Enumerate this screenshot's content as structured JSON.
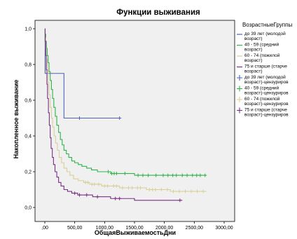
{
  "chart_data": {
    "type": "line",
    "title": "Функции выживания",
    "xlabel": "ОбщаяВыживаемостьДни",
    "ylabel": "Накопленное выживание",
    "xlim": [
      0,
      3000
    ],
    "ylim": [
      0,
      1.0
    ],
    "x_ticks": [
      ",00",
      "500,00",
      "1000,00",
      "1500,00",
      "2000,00",
      "2500,00",
      "3000,00"
    ],
    "y_ticks": [
      "0,0",
      "0,2",
      "0,4",
      "0,6",
      "0,8",
      "1,0"
    ],
    "plot_background": "#f0f0f0",
    "grid": false,
    "legend_position": "right",
    "legend": {
      "title": "ВозрастныеГруппы",
      "entries": [
        {
          "label": [
            "до 39 лет (молодой",
            "возраст)"
          ],
          "color": "#4a63b5",
          "kind": "line"
        },
        {
          "label": [
            "40 - 59 (средний",
            "возраст)"
          ],
          "color": "#2fb34a",
          "kind": "line"
        },
        {
          "label": [
            "60 - 74 (пожилой",
            "возраст)"
          ],
          "color": "#d8cf98",
          "kind": "line"
        },
        {
          "label": [
            "75 и старше (старче",
            "возраст)"
          ],
          "color": "#7a2f85",
          "kind": "line"
        },
        {
          "label": [
            "до 39 лет (молодой",
            "возраст)-цензуриров"
          ],
          "color": "#4a63b5",
          "kind": "censor"
        },
        {
          "label": [
            "40 - 59 (средний",
            "возраст)-цензуриров"
          ],
          "color": "#2fb34a",
          "kind": "censor"
        },
        {
          "label": [
            "60 - 74 (пожилой",
            "возраст)-цензуриров"
          ],
          "color": "#d8cf98",
          "kind": "censor"
        },
        {
          "label": [
            "75 и старше (старче",
            "возраст)-цензуриров"
          ],
          "color": "#7a2f85",
          "kind": "censor"
        }
      ]
    },
    "series": [
      {
        "name": "до 39 лет (молодой возраст)",
        "color": "#4a63b5",
        "steps": [
          [
            0,
            1.0
          ],
          [
            5,
            0.75
          ],
          [
            320,
            0.5
          ],
          [
            1250,
            0.5
          ]
        ],
        "censored": [
          [
            580,
            0.5
          ],
          [
            1250,
            0.5
          ]
        ]
      },
      {
        "name": "40 - 59 (средний возраст)",
        "color": "#2fb34a",
        "steps": [
          [
            0,
            1.0
          ],
          [
            5,
            0.97
          ],
          [
            15,
            0.93
          ],
          [
            25,
            0.89
          ],
          [
            40,
            0.85
          ],
          [
            55,
            0.81
          ],
          [
            70,
            0.76
          ],
          [
            90,
            0.71
          ],
          [
            110,
            0.66
          ],
          [
            130,
            0.61
          ],
          [
            150,
            0.56
          ],
          [
            175,
            0.51
          ],
          [
            200,
            0.46
          ],
          [
            230,
            0.42
          ],
          [
            260,
            0.38
          ],
          [
            290,
            0.35
          ],
          [
            320,
            0.32
          ],
          [
            360,
            0.3
          ],
          [
            400,
            0.28
          ],
          [
            450,
            0.26
          ],
          [
            500,
            0.25
          ],
          [
            560,
            0.24
          ],
          [
            620,
            0.23
          ],
          [
            700,
            0.22
          ],
          [
            780,
            0.21
          ],
          [
            880,
            0.2
          ],
          [
            1000,
            0.2
          ],
          [
            1100,
            0.19
          ],
          [
            1300,
            0.19
          ],
          [
            1500,
            0.18
          ],
          [
            2700,
            0.18
          ]
        ],
        "censored": [
          [
            1060,
            0.2
          ],
          [
            1120,
            0.19
          ],
          [
            1160,
            0.19
          ],
          [
            1200,
            0.19
          ],
          [
            1340,
            0.19
          ],
          [
            1560,
            0.18
          ],
          [
            1640,
            0.18
          ],
          [
            1730,
            0.18
          ],
          [
            1860,
            0.18
          ],
          [
            1980,
            0.18
          ],
          [
            2060,
            0.18
          ],
          [
            2140,
            0.18
          ],
          [
            2200,
            0.18
          ],
          [
            2300,
            0.18
          ],
          [
            2380,
            0.18
          ],
          [
            2470,
            0.18
          ],
          [
            2540,
            0.18
          ],
          [
            2600,
            0.18
          ],
          [
            2680,
            0.18
          ]
        ]
      },
      {
        "name": "60 - 74 (пожилой возраст)",
        "color": "#d8cf98",
        "steps": [
          [
            0,
            1.0
          ],
          [
            5,
            0.95
          ],
          [
            15,
            0.89
          ],
          [
            25,
            0.83
          ],
          [
            40,
            0.77
          ],
          [
            55,
            0.7
          ],
          [
            70,
            0.63
          ],
          [
            90,
            0.56
          ],
          [
            110,
            0.5
          ],
          [
            130,
            0.45
          ],
          [
            155,
            0.4
          ],
          [
            180,
            0.36
          ],
          [
            210,
            0.32
          ],
          [
            240,
            0.28
          ],
          [
            280,
            0.25
          ],
          [
            320,
            0.22
          ],
          [
            370,
            0.2
          ],
          [
            420,
            0.18
          ],
          [
            480,
            0.16
          ],
          [
            560,
            0.15
          ],
          [
            650,
            0.14
          ],
          [
            750,
            0.13
          ],
          [
            850,
            0.13
          ],
          [
            950,
            0.12
          ],
          [
            1100,
            0.12
          ],
          [
            1250,
            0.11
          ],
          [
            1500,
            0.11
          ],
          [
            1700,
            0.1
          ],
          [
            1900,
            0.1
          ],
          [
            2100,
            0.09
          ],
          [
            2700,
            0.09
          ]
        ],
        "censored": [
          [
            680,
            0.14
          ],
          [
            720,
            0.14
          ],
          [
            790,
            0.13
          ],
          [
            830,
            0.13
          ],
          [
            900,
            0.13
          ],
          [
            1000,
            0.12
          ],
          [
            1050,
            0.12
          ],
          [
            1150,
            0.12
          ],
          [
            1200,
            0.12
          ],
          [
            1300,
            0.11
          ],
          [
            1400,
            0.11
          ],
          [
            1460,
            0.11
          ],
          [
            1550,
            0.11
          ],
          [
            1600,
            0.11
          ],
          [
            1750,
            0.1
          ],
          [
            1800,
            0.1
          ],
          [
            1850,
            0.1
          ],
          [
            1950,
            0.1
          ],
          [
            2050,
            0.1
          ],
          [
            2150,
            0.09
          ],
          [
            2250,
            0.09
          ],
          [
            2350,
            0.09
          ],
          [
            2450,
            0.09
          ],
          [
            2550,
            0.09
          ],
          [
            2650,
            0.09
          ]
        ]
      },
      {
        "name": "75 и старше (старческий возраст)",
        "color": "#7a2f85",
        "steps": [
          [
            0,
            1.0
          ],
          [
            5,
            0.93
          ],
          [
            15,
            0.85
          ],
          [
            25,
            0.77
          ],
          [
            35,
            0.69
          ],
          [
            45,
            0.61
          ],
          [
            60,
            0.53
          ],
          [
            75,
            0.46
          ],
          [
            90,
            0.39
          ],
          [
            105,
            0.33
          ],
          [
            125,
            0.28
          ],
          [
            145,
            0.24
          ],
          [
            170,
            0.2
          ],
          [
            200,
            0.17
          ],
          [
            230,
            0.14
          ],
          [
            270,
            0.12
          ],
          [
            320,
            0.1
          ],
          [
            380,
            0.09
          ],
          [
            450,
            0.08
          ],
          [
            550,
            0.07
          ],
          [
            650,
            0.07
          ],
          [
            800,
            0.06
          ],
          [
            950,
            0.06
          ],
          [
            1100,
            0.05
          ],
          [
            1350,
            0.05
          ],
          [
            1500,
            0.04
          ],
          [
            2300,
            0.04
          ]
        ],
        "censored": [
          [
            500,
            0.08
          ],
          [
            580,
            0.07
          ],
          [
            700,
            0.07
          ],
          [
            880,
            0.06
          ],
          [
            1180,
            0.05
          ],
          [
            1250,
            0.05
          ],
          [
            2260,
            0.04
          ]
        ]
      }
    ]
  }
}
